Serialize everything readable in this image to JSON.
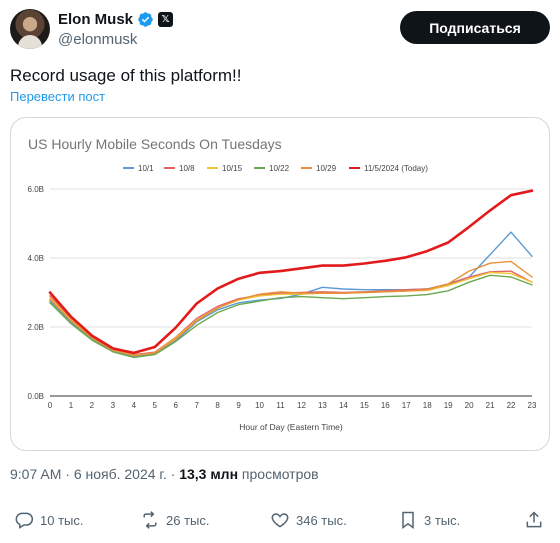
{
  "author": {
    "name": "Elon Musk",
    "handle": "@elonmusk",
    "x_badge": "𝕏"
  },
  "subscribe_label": "Подписаться",
  "post": {
    "text": "Record usage of this platform!!",
    "translate_label": "Перевести пост"
  },
  "meta": {
    "time": "9:07 AM",
    "sep1": " · ",
    "date": "6 нояб. 2024 г.",
    "sep2": " · ",
    "views_count": "13,3 млн",
    "views_label": " просмотров"
  },
  "actions": {
    "replies": "10 тыс.",
    "reposts": "26 тыс.",
    "likes": "346 тыс.",
    "bookmarks": "3 тыс."
  },
  "icons": [
    "verified-icon",
    "x-badge-icon",
    "reply-icon",
    "repost-icon",
    "like-icon",
    "bookmark-icon",
    "share-icon"
  ],
  "colors": {
    "accent": "#1d9bf0",
    "text": "#0f1419",
    "muted": "#536471"
  },
  "chart_data": {
    "type": "line",
    "title": "US Hourly Mobile Seconds On Tuesdays",
    "xlabel": "Hour of Day (Eastern Time)",
    "ylabel": "",
    "x": [
      0,
      1,
      2,
      3,
      4,
      5,
      6,
      7,
      8,
      9,
      10,
      11,
      12,
      13,
      14,
      15,
      16,
      17,
      18,
      19,
      20,
      21,
      22,
      23
    ],
    "ylim": [
      0,
      6
    ],
    "yticks": [
      0,
      2,
      4,
      6
    ],
    "ytick_labels": [
      "0.0B",
      "2.0B",
      "4.0B",
      "6.0B"
    ],
    "grid": "horizontal",
    "legend": "top",
    "series": [
      {
        "name": "10/1",
        "color": "#5b9bd5",
        "width": 1.4,
        "values": [
          2.75,
          2.15,
          1.65,
          1.32,
          1.15,
          1.22,
          1.6,
          2.15,
          2.5,
          2.7,
          2.78,
          2.83,
          2.95,
          3.15,
          3.1,
          3.08,
          3.08,
          3.08,
          3.1,
          3.2,
          3.45,
          4.1,
          4.75,
          4.05
        ]
      },
      {
        "name": "10/8",
        "color": "#e06666",
        "width": 1.4,
        "values": [
          2.9,
          2.25,
          1.72,
          1.35,
          1.2,
          1.27,
          1.7,
          2.25,
          2.6,
          2.82,
          2.92,
          2.98,
          3.0,
          3.02,
          3.0,
          3.02,
          3.05,
          3.08,
          3.1,
          3.25,
          3.45,
          3.6,
          3.62,
          3.3
        ]
      },
      {
        "name": "10/15",
        "color": "#f1c232",
        "width": 1.4,
        "values": [
          2.85,
          2.2,
          1.7,
          1.33,
          1.18,
          1.25,
          1.68,
          2.2,
          2.55,
          2.78,
          2.9,
          2.95,
          2.95,
          2.98,
          2.98,
          3.0,
          3.02,
          3.04,
          3.06,
          3.2,
          3.4,
          3.58,
          3.55,
          3.3
        ]
      },
      {
        "name": "10/22",
        "color": "#6aa84f",
        "width": 1.4,
        "values": [
          2.7,
          2.1,
          1.62,
          1.28,
          1.12,
          1.2,
          1.58,
          2.05,
          2.42,
          2.65,
          2.75,
          2.85,
          2.88,
          2.85,
          2.82,
          2.85,
          2.88,
          2.9,
          2.94,
          3.05,
          3.3,
          3.5,
          3.45,
          3.22
        ]
      },
      {
        "name": "10/29",
        "color": "#e69138",
        "width": 1.4,
        "values": [
          2.8,
          2.18,
          1.68,
          1.33,
          1.17,
          1.24,
          1.65,
          2.18,
          2.55,
          2.8,
          2.95,
          3.02,
          2.98,
          2.98,
          2.98,
          3.0,
          3.02,
          3.04,
          3.08,
          3.25,
          3.62,
          3.85,
          3.9,
          3.45
        ]
      },
      {
        "name": "11/5/2024 (Today)",
        "color": "#e31a1c",
        "width": 2.6,
        "values": [
          3.0,
          2.3,
          1.75,
          1.38,
          1.25,
          1.42,
          1.98,
          2.68,
          3.12,
          3.4,
          3.57,
          3.62,
          3.7,
          3.78,
          3.78,
          3.84,
          3.92,
          4.02,
          4.2,
          4.45,
          4.9,
          5.38,
          5.82,
          5.95
        ]
      }
    ]
  }
}
